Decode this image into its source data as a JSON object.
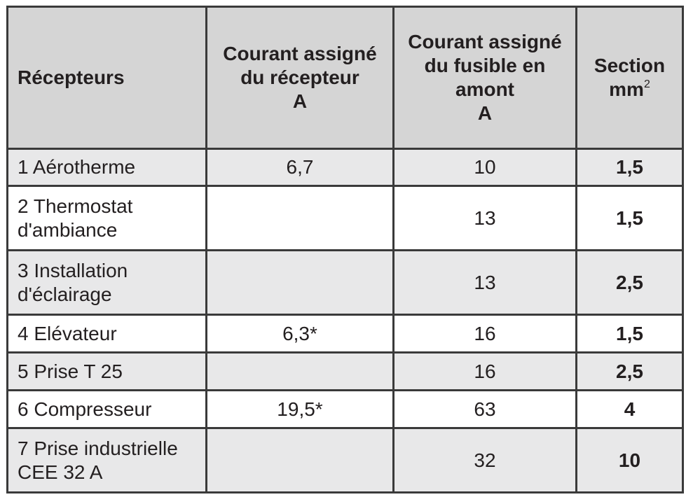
{
  "headers": {
    "recepteurs": "Récepteurs",
    "courant_recepteur": [
      "Courant assigné",
      "du récepteur",
      "A"
    ],
    "courant_fusible": [
      "Courant assigné",
      "du fusible en",
      "amont",
      "A"
    ],
    "section": "Section",
    "section_unit": "mm",
    "section_unit_exp": "2"
  },
  "rows": [
    {
      "name": [
        "1 Aérotherme"
      ],
      "courant": "6,7",
      "fusible": "10",
      "section": "1,5"
    },
    {
      "name": [
        "2 Thermostat",
        "d'ambiance"
      ],
      "courant": "",
      "fusible": "13",
      "section": "1,5"
    },
    {
      "name": [
        "3 Installation",
        "d'éclairage"
      ],
      "courant": "",
      "fusible": "13",
      "section": "2,5"
    },
    {
      "name": [
        "4 Elévateur"
      ],
      "courant": "6,3*",
      "fusible": "16",
      "section": "1,5"
    },
    {
      "name": [
        "5 Prise T 25"
      ],
      "courant": "",
      "fusible": "16",
      "section": "2,5"
    },
    {
      "name": [
        "6 Compresseur"
      ],
      "courant": "19,5*",
      "fusible": "63",
      "section": "4"
    },
    {
      "name": [
        "7 Prise industrielle",
        "CEE 32 A"
      ],
      "courant": "",
      "fusible": "32",
      "section": "10"
    }
  ]
}
